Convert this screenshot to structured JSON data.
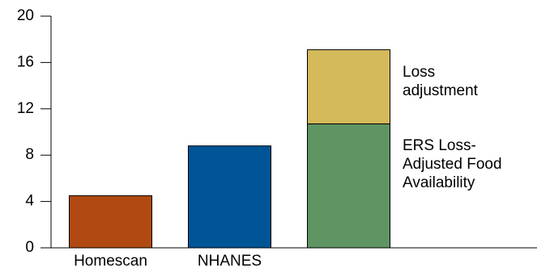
{
  "chart_data": {
    "type": "bar",
    "categories": [
      "Homescan",
      "NHANES",
      null
    ],
    "values": [
      4.5,
      8.8,
      null
    ],
    "colors": [
      "#b04a12",
      "#005596",
      null
    ],
    "series": [
      {
        "name": "ERS Loss-Adjusted Food Availability",
        "color": "#5f9463",
        "values": [
          null,
          null,
          10.7
        ]
      },
      {
        "name": "Loss adjustment",
        "color": "#d5ba5c",
        "values": [
          null,
          null,
          6.4
        ]
      }
    ],
    "ylim": [
      0,
      20
    ],
    "yticks": [
      0,
      4,
      8,
      12,
      16,
      20
    ]
  }
}
